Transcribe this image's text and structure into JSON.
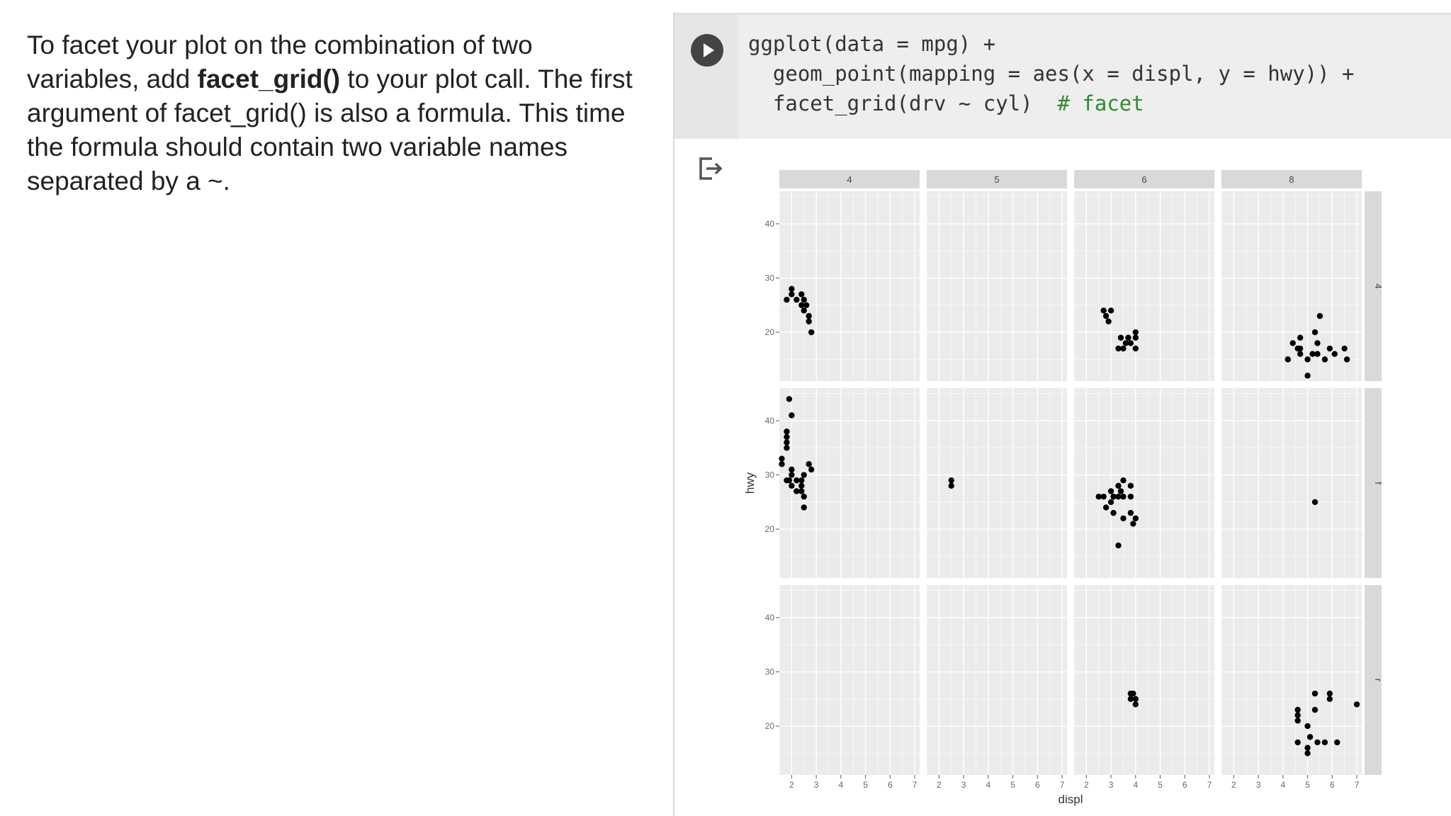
{
  "explanation": {
    "part1": "To facet your plot on the combination of two variables, add ",
    "bold": "facet_grid()",
    "part2": " to your plot call. The first argument of facet_grid() is also a formula. This time the formula should contain two variable names separated by a ~."
  },
  "code": {
    "line1": "ggplot(data = mpg) +",
    "line2": "  geom_point(mapping = aes(x = displ, y = hwy)) +",
    "line3": "  facet_grid(drv ~ cyl)  ",
    "comment": "# facet"
  },
  "icons": {
    "run": "play-icon",
    "output": "output-redirect-icon"
  },
  "colors": {
    "panel_bg": "#ebebeb",
    "strip_bg": "#d9d9d9",
    "grid": "#ffffff",
    "point": "#000000",
    "code_comment": "#2e8b2e"
  },
  "chart_data": {
    "type": "scatter",
    "facet_cols": [
      "4",
      "5",
      "6",
      "8"
    ],
    "facet_rows": [
      "4",
      "f",
      "r"
    ],
    "xlabel": "displ",
    "ylabel": "hwy",
    "x_ticks": [
      2,
      3,
      4,
      5,
      6,
      7
    ],
    "y_ticks": [
      20,
      30,
      40
    ],
    "xlim": [
      1.5,
      7.2
    ],
    "ylim": [
      11,
      46
    ],
    "grid": true,
    "panels": [
      {
        "row": "4",
        "col": "4",
        "points": [
          [
            1.8,
            26
          ],
          [
            2.0,
            27
          ],
          [
            2.0,
            28
          ],
          [
            2.2,
            26
          ],
          [
            2.4,
            27
          ],
          [
            2.4,
            25
          ],
          [
            2.5,
            24
          ],
          [
            2.5,
            26
          ],
          [
            2.6,
            25
          ],
          [
            2.7,
            23
          ],
          [
            2.7,
            22
          ],
          [
            2.8,
            20
          ]
        ]
      },
      {
        "row": "4",
        "col": "5",
        "points": []
      },
      {
        "row": "4",
        "col": "6",
        "points": [
          [
            2.7,
            24
          ],
          [
            2.8,
            23
          ],
          [
            2.9,
            22
          ],
          [
            3.0,
            24
          ],
          [
            3.3,
            17
          ],
          [
            3.4,
            19
          ],
          [
            3.5,
            17
          ],
          [
            3.6,
            18
          ],
          [
            3.7,
            19
          ],
          [
            3.8,
            18
          ],
          [
            4.0,
            17
          ],
          [
            4.0,
            19
          ],
          [
            4.0,
            20
          ]
        ]
      },
      {
        "row": "4",
        "col": "8",
        "points": [
          [
            4.2,
            15
          ],
          [
            4.4,
            18
          ],
          [
            4.6,
            17
          ],
          [
            4.7,
            19
          ],
          [
            4.7,
            16
          ],
          [
            4.7,
            17
          ],
          [
            5.0,
            15
          ],
          [
            5.2,
            16
          ],
          [
            5.3,
            20
          ],
          [
            5.4,
            16
          ],
          [
            5.4,
            18
          ],
          [
            5.7,
            15
          ],
          [
            5.9,
            17
          ],
          [
            6.1,
            16
          ],
          [
            6.5,
            17
          ],
          [
            6.6,
            15
          ],
          [
            5.5,
            23
          ],
          [
            5.0,
            12
          ]
        ]
      },
      {
        "row": "f",
        "col": "4",
        "points": [
          [
            1.6,
            33
          ],
          [
            1.6,
            32
          ],
          [
            1.8,
            35
          ],
          [
            1.8,
            36
          ],
          [
            1.8,
            37
          ],
          [
            1.8,
            38
          ],
          [
            1.8,
            29
          ],
          [
            1.9,
            29
          ],
          [
            1.9,
            44
          ],
          [
            2.0,
            41
          ],
          [
            2.0,
            31
          ],
          [
            2.0,
            30
          ],
          [
            2.0,
            28
          ],
          [
            2.2,
            29
          ],
          [
            2.2,
            27
          ],
          [
            2.4,
            29
          ],
          [
            2.4,
            27
          ],
          [
            2.4,
            28
          ],
          [
            2.5,
            30
          ],
          [
            2.5,
            26
          ],
          [
            2.5,
            24
          ],
          [
            2.7,
            32
          ],
          [
            2.8,
            31
          ]
        ]
      },
      {
        "row": "f",
        "col": "5",
        "points": [
          [
            2.5,
            28
          ],
          [
            2.5,
            29
          ]
        ]
      },
      {
        "row": "f",
        "col": "6",
        "points": [
          [
            2.5,
            26
          ],
          [
            2.7,
            26
          ],
          [
            2.8,
            24
          ],
          [
            3.0,
            27
          ],
          [
            3.0,
            25
          ],
          [
            3.1,
            26
          ],
          [
            3.1,
            23
          ],
          [
            3.3,
            26
          ],
          [
            3.3,
            28
          ],
          [
            3.4,
            27
          ],
          [
            3.5,
            29
          ],
          [
            3.5,
            26
          ],
          [
            3.5,
            22
          ],
          [
            3.8,
            28
          ],
          [
            3.8,
            26
          ],
          [
            3.8,
            23
          ],
          [
            3.9,
            21
          ],
          [
            4.0,
            22
          ],
          [
            3.3,
            17
          ]
        ]
      },
      {
        "row": "f",
        "col": "8",
        "points": [
          [
            5.3,
            25
          ]
        ]
      },
      {
        "row": "r",
        "col": "4",
        "points": []
      },
      {
        "row": "r",
        "col": "5",
        "points": []
      },
      {
        "row": "r",
        "col": "6",
        "points": [
          [
            3.8,
            26
          ],
          [
            3.8,
            25
          ],
          [
            3.9,
            26
          ],
          [
            4.0,
            24
          ],
          [
            4.0,
            25
          ]
        ]
      },
      {
        "row": "r",
        "col": "8",
        "points": [
          [
            4.6,
            22
          ],
          [
            4.6,
            21
          ],
          [
            4.6,
            23
          ],
          [
            4.6,
            17
          ],
          [
            5.0,
            20
          ],
          [
            5.0,
            15
          ],
          [
            5.0,
            16
          ],
          [
            5.1,
            18
          ],
          [
            5.3,
            23
          ],
          [
            5.3,
            26
          ],
          [
            5.4,
            17
          ],
          [
            5.7,
            17
          ],
          [
            5.9,
            26
          ],
          [
            5.9,
            25
          ],
          [
            6.2,
            17
          ],
          [
            7.0,
            24
          ]
        ]
      }
    ]
  }
}
